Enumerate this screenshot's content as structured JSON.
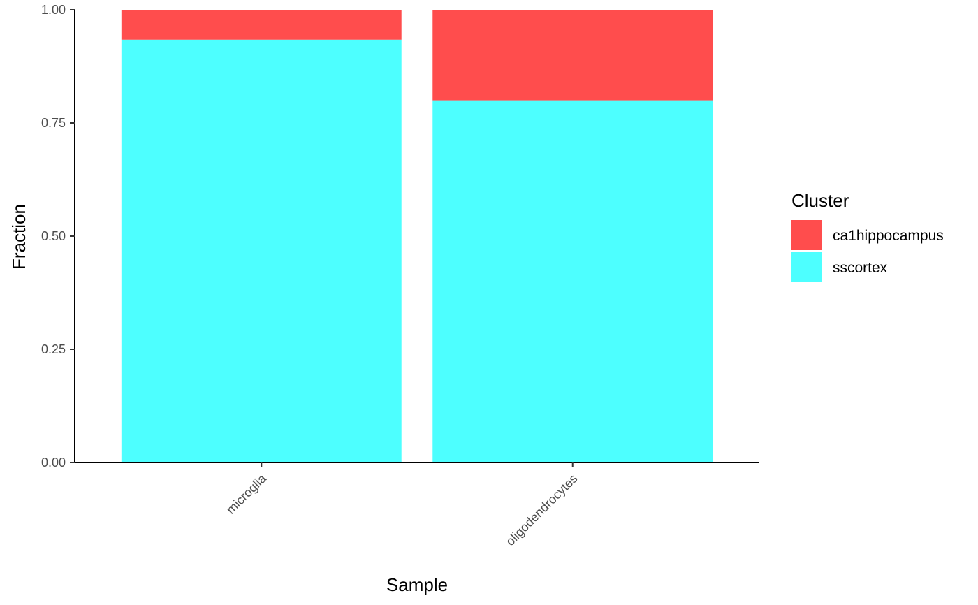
{
  "chart_data": {
    "type": "bar",
    "stacked": true,
    "categories": [
      "microglia",
      "oligodendrocytes"
    ],
    "series": [
      {
        "name": "sscortex",
        "values": [
          0.934,
          0.8
        ],
        "color": "#4dffff"
      },
      {
        "name": "ca1hippocampus",
        "values": [
          0.066,
          0.2
        ],
        "color": "#ff4d4d"
      }
    ],
    "xlabel": "Sample",
    "ylabel": "Fraction",
    "ylim": [
      0,
      1
    ],
    "yticks": [
      0,
      0.25,
      0.5,
      0.75,
      1
    ],
    "ytick_labels": [
      "0.00",
      "0.25",
      "0.50",
      "0.75",
      "1.00"
    ],
    "legend": {
      "title": "Cluster",
      "position": "right",
      "items": [
        {
          "label": "ca1hippocampus",
          "color": "#ff4d4d"
        },
        {
          "label": "sscortex",
          "color": "#4dffff"
        }
      ]
    },
    "grid": false
  }
}
